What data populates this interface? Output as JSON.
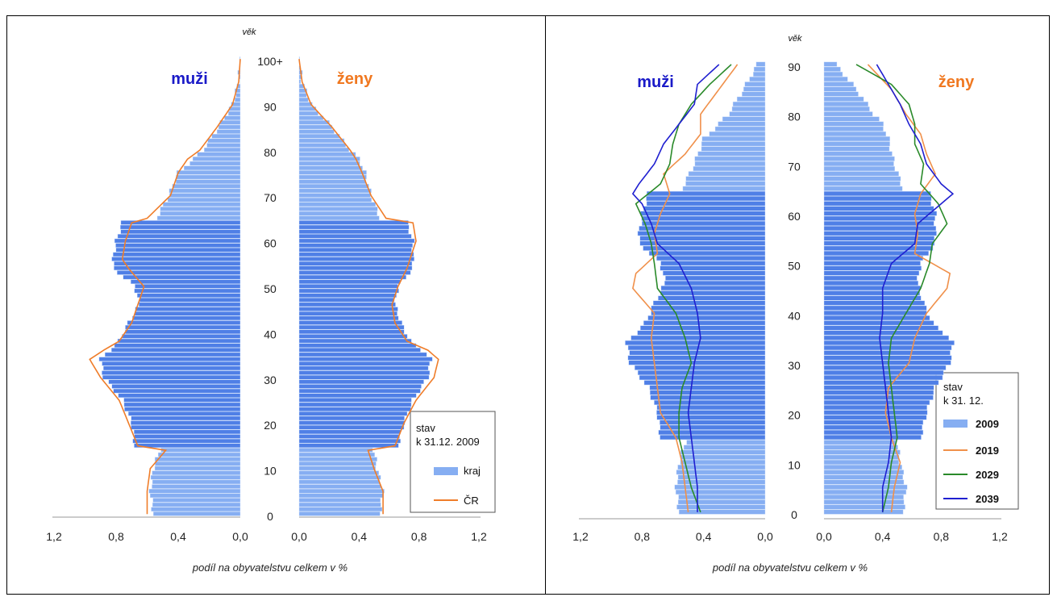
{
  "colors": {
    "bar_dark": "#4f7fe6",
    "bar_light": "#86aef2",
    "bar_stroke": "#cfe0fb",
    "male_label": "#1a1ac8",
    "female_label": "#f07820",
    "line_cr": "#ef7d2a",
    "line_2019": "#f0904a",
    "line_2029": "#2a8a2a",
    "line_2039": "#1f1fd0"
  },
  "chart_data": [
    {
      "type": "bar",
      "subtype": "population-pyramid",
      "age_axis_title": "věk",
      "age_ticks": [
        "0",
        "10",
        "20",
        "30",
        "40",
        "50",
        "60",
        "70",
        "80",
        "90",
        "100+"
      ],
      "x_ticks": [
        "1,2",
        "0,8",
        "0,4",
        "0,0",
        "0,0",
        "0,4",
        "0,8",
        "1,2"
      ],
      "xlabel": "podíl na obyvatelstvu celkem v %",
      "male_label": "muži",
      "female_label": "ženy",
      "xlim": [
        0,
        1.2
      ],
      "ylim": [
        0,
        101
      ],
      "legend": {
        "placement": "bottom-right",
        "title_line1": "stav",
        "title_line2": "k 31.12. 2009",
        "entries": [
          "kraj",
          "ČR"
        ]
      },
      "series": [
        {
          "name": "kraj",
          "sex": "male",
          "ages": [
            0,
            5,
            10,
            14,
            15,
            20,
            25,
            30,
            34,
            36,
            38,
            42,
            46,
            50,
            54,
            56,
            60,
            64,
            65,
            70,
            75,
            78,
            80,
            85,
            90,
            95,
            100
          ],
          "values": [
            0.56,
            0.58,
            0.56,
            0.52,
            0.68,
            0.7,
            0.76,
            0.88,
            0.9,
            0.84,
            0.78,
            0.72,
            0.65,
            0.68,
            0.82,
            0.82,
            0.8,
            0.76,
            0.54,
            0.46,
            0.4,
            0.3,
            0.24,
            0.14,
            0.05,
            0.01,
            0.0
          ]
        },
        {
          "name": "ČR",
          "sex": "male",
          "ages": [
            0,
            5,
            10,
            14,
            15,
            20,
            25,
            30,
            34,
            36,
            38,
            42,
            46,
            50,
            54,
            56,
            60,
            64,
            65,
            70,
            75,
            78,
            80,
            85,
            90,
            95,
            100
          ],
          "values": [
            0.6,
            0.6,
            0.58,
            0.48,
            0.66,
            0.72,
            0.78,
            0.9,
            0.97,
            0.88,
            0.78,
            0.7,
            0.66,
            0.62,
            0.72,
            0.76,
            0.74,
            0.7,
            0.6,
            0.45,
            0.4,
            0.34,
            0.26,
            0.15,
            0.05,
            0.01,
            0.0
          ]
        },
        {
          "name": "kraj",
          "sex": "female",
          "ages": [
            0,
            5,
            10,
            14,
            15,
            20,
            25,
            30,
            34,
            36,
            38,
            42,
            46,
            50,
            54,
            56,
            60,
            64,
            65,
            70,
            75,
            78,
            80,
            85,
            90,
            95,
            100
          ],
          "values": [
            0.54,
            0.56,
            0.52,
            0.5,
            0.66,
            0.7,
            0.76,
            0.86,
            0.88,
            0.82,
            0.74,
            0.68,
            0.64,
            0.66,
            0.76,
            0.76,
            0.76,
            0.72,
            0.54,
            0.48,
            0.44,
            0.4,
            0.34,
            0.22,
            0.08,
            0.02,
            0.0
          ]
        },
        {
          "name": "ČR",
          "sex": "female",
          "ages": [
            0,
            5,
            10,
            14,
            15,
            20,
            25,
            30,
            34,
            36,
            38,
            42,
            46,
            50,
            54,
            56,
            60,
            64,
            65,
            70,
            75,
            78,
            80,
            85,
            90,
            95,
            100
          ],
          "values": [
            0.56,
            0.56,
            0.5,
            0.46,
            0.64,
            0.7,
            0.78,
            0.9,
            0.93,
            0.86,
            0.72,
            0.64,
            0.62,
            0.66,
            0.72,
            0.74,
            0.78,
            0.76,
            0.58,
            0.48,
            0.42,
            0.38,
            0.34,
            0.22,
            0.08,
            0.02,
            0.0
          ]
        }
      ]
    },
    {
      "type": "bar",
      "subtype": "population-pyramid",
      "age_axis_title": "věk",
      "age_ticks": [
        "0",
        "10",
        "20",
        "30",
        "40",
        "50",
        "60",
        "70",
        "80",
        "90"
      ],
      "x_ticks": [
        "1,2",
        "0,8",
        "0,4",
        "0,0",
        "0,0",
        "0,4",
        "0,8",
        "1,2"
      ],
      "xlabel": "podíl na obyvatelstvu celkem v %",
      "male_label": "muži",
      "female_label": "ženy",
      "xlim": [
        0,
        1.2
      ],
      "ylim": [
        0,
        91
      ],
      "legend": {
        "placement": "bottom-right",
        "title_line1": "stav",
        "title_line2": "k 31. 12.",
        "entries": [
          "2009",
          "2019",
          "2029",
          "2039"
        ]
      },
      "series": [
        {
          "name": "2009",
          "sex": "male",
          "ages": [
            0,
            5,
            10,
            14,
            15,
            20,
            25,
            30,
            34,
            36,
            38,
            42,
            46,
            50,
            54,
            56,
            60,
            64,
            65,
            70,
            75,
            78,
            80,
            85,
            90
          ],
          "values": [
            0.56,
            0.58,
            0.56,
            0.52,
            0.68,
            0.7,
            0.76,
            0.88,
            0.9,
            0.84,
            0.78,
            0.72,
            0.65,
            0.68,
            0.82,
            0.82,
            0.8,
            0.76,
            0.54,
            0.46,
            0.4,
            0.3,
            0.24,
            0.14,
            0.05
          ]
        },
        {
          "name": "2019",
          "sex": "male",
          "ages": [
            0,
            5,
            10,
            15,
            20,
            25,
            30,
            35,
            40,
            45,
            48,
            52,
            56,
            60,
            64,
            68,
            72,
            76,
            80,
            85,
            90
          ],
          "values": [
            0.5,
            0.52,
            0.54,
            0.58,
            0.68,
            0.7,
            0.72,
            0.74,
            0.72,
            0.86,
            0.84,
            0.7,
            0.72,
            0.68,
            0.62,
            0.66,
            0.52,
            0.42,
            0.42,
            0.3,
            0.18
          ]
        },
        {
          "name": "2029",
          "sex": "male",
          "ages": [
            0,
            5,
            10,
            15,
            20,
            25,
            30,
            35,
            40,
            45,
            50,
            54,
            58,
            62,
            66,
            70,
            74,
            78,
            82,
            86,
            90
          ],
          "values": [
            0.42,
            0.48,
            0.52,
            0.56,
            0.56,
            0.54,
            0.48,
            0.52,
            0.58,
            0.7,
            0.72,
            0.74,
            0.78,
            0.84,
            0.68,
            0.62,
            0.6,
            0.56,
            0.48,
            0.36,
            0.22
          ]
        },
        {
          "name": "2039",
          "sex": "male",
          "ages": [
            0,
            5,
            10,
            15,
            20,
            25,
            30,
            35,
            40,
            45,
            50,
            54,
            58,
            62,
            64,
            66,
            70,
            74,
            78,
            82,
            86,
            90
          ],
          "values": [
            0.44,
            0.44,
            0.46,
            0.48,
            0.5,
            0.48,
            0.46,
            0.42,
            0.44,
            0.48,
            0.56,
            0.7,
            0.74,
            0.8,
            0.86,
            0.82,
            0.72,
            0.66,
            0.56,
            0.46,
            0.44,
            0.3
          ]
        },
        {
          "name": "2009",
          "sex": "female",
          "ages": [
            0,
            5,
            10,
            14,
            15,
            20,
            25,
            30,
            34,
            36,
            38,
            42,
            46,
            50,
            54,
            56,
            60,
            64,
            65,
            70,
            75,
            78,
            80,
            85,
            90
          ],
          "values": [
            0.54,
            0.56,
            0.52,
            0.5,
            0.66,
            0.7,
            0.76,
            0.86,
            0.88,
            0.82,
            0.74,
            0.68,
            0.64,
            0.66,
            0.76,
            0.76,
            0.76,
            0.72,
            0.54,
            0.48,
            0.44,
            0.4,
            0.34,
            0.22,
            0.08
          ]
        },
        {
          "name": "2019",
          "sex": "female",
          "ages": [
            0,
            5,
            10,
            15,
            20,
            25,
            30,
            35,
            40,
            45,
            48,
            52,
            56,
            60,
            64,
            68,
            72,
            76,
            80,
            85,
            90
          ],
          "values": [
            0.46,
            0.48,
            0.52,
            0.46,
            0.42,
            0.44,
            0.58,
            0.62,
            0.7,
            0.84,
            0.86,
            0.62,
            0.64,
            0.62,
            0.66,
            0.76,
            0.7,
            0.66,
            0.56,
            0.46,
            0.3
          ]
        },
        {
          "name": "2029",
          "sex": "female",
          "ages": [
            0,
            5,
            10,
            15,
            20,
            25,
            30,
            35,
            40,
            45,
            50,
            54,
            58,
            62,
            66,
            70,
            74,
            78,
            82,
            86,
            90
          ],
          "values": [
            0.4,
            0.44,
            0.46,
            0.5,
            0.48,
            0.46,
            0.44,
            0.46,
            0.56,
            0.66,
            0.72,
            0.74,
            0.84,
            0.78,
            0.66,
            0.68,
            0.62,
            0.62,
            0.58,
            0.46,
            0.22
          ]
        },
        {
          "name": "2039",
          "sex": "female",
          "ages": [
            0,
            5,
            10,
            15,
            20,
            25,
            30,
            35,
            40,
            45,
            50,
            54,
            58,
            62,
            64,
            66,
            70,
            74,
            78,
            82,
            86,
            90
          ],
          "values": [
            0.4,
            0.4,
            0.44,
            0.46,
            0.44,
            0.42,
            0.4,
            0.38,
            0.4,
            0.4,
            0.46,
            0.62,
            0.64,
            0.8,
            0.88,
            0.8,
            0.7,
            0.66,
            0.58,
            0.52,
            0.44,
            0.36
          ]
        }
      ]
    }
  ]
}
